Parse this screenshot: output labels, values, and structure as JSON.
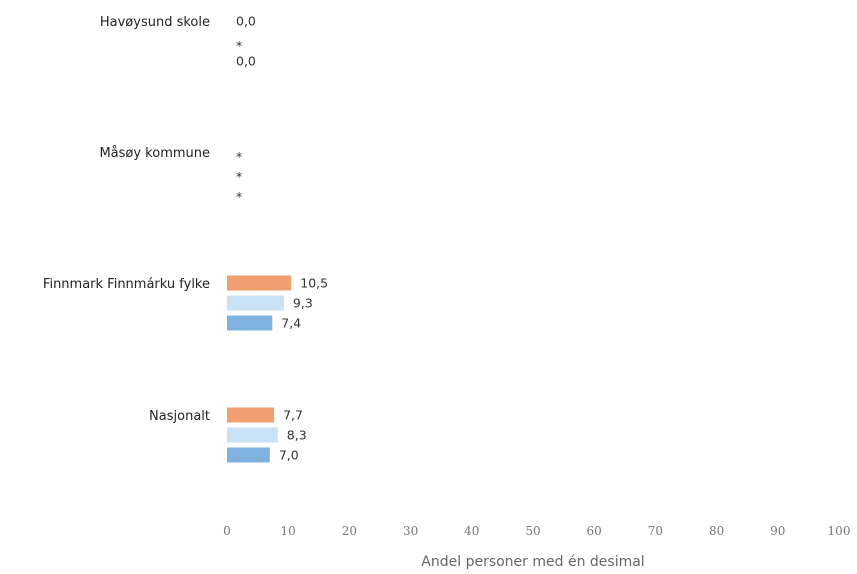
{
  "chart_data": {
    "type": "bar",
    "orientation": "horizontal",
    "categories": [
      "Havøysund skole",
      "Måsøy kommune",
      "Finnmark Finnmárku fylke",
      "Nasjonalt"
    ],
    "series": [
      {
        "color": "#f0a070",
        "values": [
          0.0,
          null,
          10.5,
          7.7
        ],
        "labels": [
          "0,0",
          "*",
          "10,5",
          "7,7"
        ]
      },
      {
        "color": "#c9e2f6",
        "values": [
          null,
          null,
          9.3,
          8.3
        ],
        "labels": [
          "*",
          "*",
          "9,3",
          "8,3"
        ]
      },
      {
        "color": "#7fb2de",
        "values": [
          0.0,
          null,
          7.4,
          7.0
        ],
        "labels": [
          "0,0",
          "*",
          "7,4",
          "7,0"
        ]
      }
    ],
    "xlim": [
      0,
      100
    ],
    "xticks": [
      "0",
      "10",
      "20",
      "30",
      "40",
      "50",
      "60",
      "70",
      "80",
      "90",
      "100"
    ],
    "xlabel": "Andel personer med én desimal",
    "grid": false,
    "legend": "none"
  }
}
